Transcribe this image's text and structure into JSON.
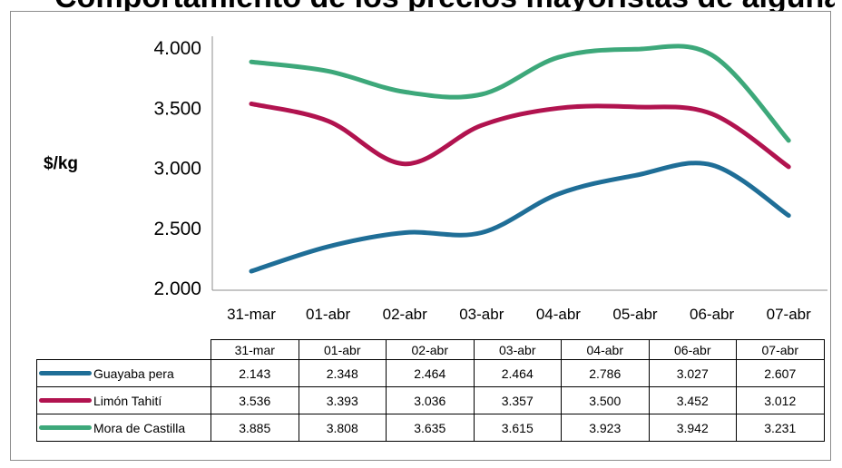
{
  "title": "Comportamiento de los precios mayoristas de algunas frutas",
  "chart_data": {
    "type": "line",
    "categories": [
      "31-mar",
      "01-abr",
      "02-abr",
      "03-abr",
      "04-abr",
      "05-abr",
      "06-abr",
      "07-abr"
    ],
    "ylabel": "$/kg",
    "ylim": [
      2000,
      4000
    ],
    "yticks": [
      "2.000",
      "2.500",
      "3.000",
      "3.500",
      "4.000"
    ],
    "grid": false,
    "legend": "data-table-below",
    "series": [
      {
        "name": "Guayaba pera",
        "color": "#1f6e97",
        "values": [
          2143,
          2348,
          2464,
          2464,
          2786,
          2940,
          3027,
          2607
        ]
      },
      {
        "name": "Limón Tahití",
        "color": "#b1134f",
        "values": [
          3536,
          3393,
          3036,
          3357,
          3500,
          3510,
          3452,
          3012
        ]
      },
      {
        "name": "Mora de Castilla",
        "color": "#3da87a",
        "values": [
          3885,
          3808,
          3635,
          3615,
          3923,
          3990,
          3942,
          3231
        ]
      }
    ]
  },
  "table": {
    "header": [
      "31-mar",
      "01-abr",
      "02-abr",
      "03-abr",
      "04-abr",
      "06-abr",
      "07-abr"
    ],
    "rows": [
      {
        "name": "Guayaba pera",
        "color": "#1f6e97",
        "cells": [
          "2.143",
          "2.348",
          "2.464",
          "2.464",
          "2.786",
          "3.027",
          "2.607"
        ]
      },
      {
        "name": "Limón Tahití",
        "color": "#b1134f",
        "cells": [
          "3.536",
          "3.393",
          "3.036",
          "3.357",
          "3.500",
          "3.452",
          "3.012"
        ]
      },
      {
        "name": "Mora de Castilla",
        "color": "#3da87a",
        "cells": [
          "3.885",
          "3.808",
          "3.635",
          "3.615",
          "3.923",
          "3.942",
          "3.231"
        ]
      }
    ]
  }
}
